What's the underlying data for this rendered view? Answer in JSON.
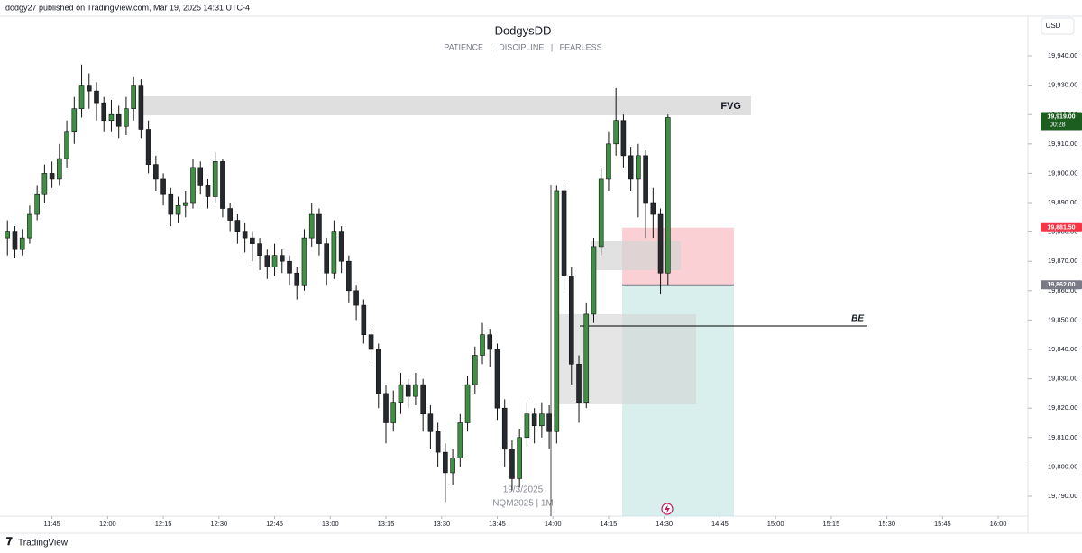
{
  "header": {
    "publisher": "dodgy27 published on TradingView.com, Mar 19, 2025 14:31 UTC-4",
    "title": "DodgysDD",
    "subtitle": "PATIENCE   |   DISCIPLINE   |   FEARLESS",
    "currency": "USD",
    "watermark_date": "19/3/2025",
    "watermark_symbol": "NQM2025 | 1M",
    "brand": "TradingView"
  },
  "chart_data": {
    "type": "candlestick",
    "x": [
      "11:33",
      "11:35",
      "11:37",
      "11:39",
      "11:41",
      "11:43",
      "11:45",
      "11:47",
      "11:49",
      "11:51",
      "11:53",
      "11:55",
      "11:57",
      "11:59",
      "12:01",
      "12:03",
      "12:05",
      "12:07",
      "12:09",
      "12:11",
      "12:13",
      "12:15",
      "12:17",
      "12:19",
      "12:21",
      "12:23",
      "12:25",
      "12:27",
      "12:29",
      "12:31",
      "12:33",
      "12:35",
      "12:37",
      "12:39",
      "12:41",
      "12:43",
      "12:45",
      "12:47",
      "12:49",
      "12:51",
      "12:53",
      "12:55",
      "12:57",
      "12:59",
      "13:01",
      "13:03",
      "13:05",
      "13:07",
      "13:09",
      "13:11",
      "13:13",
      "13:15",
      "13:17",
      "13:19",
      "13:21",
      "13:23",
      "13:25",
      "13:27",
      "13:29",
      "13:31",
      "13:33",
      "13:35",
      "13:37",
      "13:39",
      "13:41",
      "13:43",
      "13:45",
      "13:47",
      "13:49",
      "13:51",
      "13:53",
      "13:55",
      "13:57",
      "13:59",
      "14:01",
      "14:03",
      "14:05",
      "14:07",
      "14:09",
      "14:11",
      "14:13",
      "14:15",
      "14:17",
      "14:19",
      "14:21",
      "14:23",
      "14:25",
      "14:27",
      "14:29",
      "14:31"
    ],
    "candles": [
      [
        19878,
        19884,
        19872,
        19880
      ],
      [
        19880,
        19882,
        19871,
        19874
      ],
      [
        19874,
        19881,
        19872,
        19878
      ],
      [
        19878,
        19889,
        19876,
        19886
      ],
      [
        19886,
        19896,
        19884,
        19893
      ],
      [
        19893,
        19903,
        19890,
        19900
      ],
      [
        19900,
        19904,
        19895,
        19898
      ],
      [
        19898,
        19910,
        19896,
        19905
      ],
      [
        19905,
        19918,
        19902,
        19914
      ],
      [
        19914,
        19926,
        19910,
        19922
      ],
      [
        19922,
        19937,
        19919,
        19930
      ],
      [
        19930,
        19934,
        19922,
        19928
      ],
      [
        19928,
        19931,
        19918,
        19924
      ],
      [
        19924,
        19926,
        19914,
        19918
      ],
      [
        19918,
        19925,
        19914,
        19920
      ],
      [
        19920,
        19923,
        19912,
        19916
      ],
      [
        19916,
        19926,
        19913,
        19922
      ],
      [
        19922,
        19933,
        19918,
        19930
      ],
      [
        19930,
        19932,
        19912,
        19915
      ],
      [
        19915,
        19918,
        19900,
        19903
      ],
      [
        19903,
        19906,
        19894,
        19898
      ],
      [
        19898,
        19900,
        19889,
        19893
      ],
      [
        19893,
        19895,
        19882,
        19886
      ],
      [
        19886,
        19892,
        19883,
        19889
      ],
      [
        19889,
        19894,
        19885,
        19890
      ],
      [
        19890,
        19905,
        19888,
        19902
      ],
      [
        19902,
        19904,
        19893,
        19896
      ],
      [
        19896,
        19898,
        19888,
        19892
      ],
      [
        19892,
        19907,
        19890,
        19904
      ],
      [
        19904,
        19905,
        19885,
        19888
      ],
      [
        19888,
        19890,
        19880,
        19884
      ],
      [
        19884,
        19886,
        19876,
        19880
      ],
      [
        19880,
        19883,
        19873,
        19878
      ],
      [
        19878,
        19880,
        19870,
        19876
      ],
      [
        19876,
        19878,
        19867,
        19872
      ],
      [
        19872,
        19874,
        19864,
        19868
      ],
      [
        19868,
        19876,
        19865,
        19872
      ],
      [
        19872,
        19874,
        19866,
        19870
      ],
      [
        19870,
        19872,
        19862,
        19866
      ],
      [
        19866,
        19868,
        19857,
        19862
      ],
      [
        19862,
        19881,
        19860,
        19878
      ],
      [
        19878,
        19890,
        19875,
        19886
      ],
      [
        19886,
        19888,
        19872,
        19876
      ],
      [
        19876,
        19878,
        19862,
        19866
      ],
      [
        19866,
        19884,
        19864,
        19880
      ],
      [
        19880,
        19882,
        19866,
        19870
      ],
      [
        19870,
        19872,
        19856,
        19860
      ],
      [
        19860,
        19862,
        19850,
        19855
      ],
      [
        19855,
        19857,
        19842,
        19845
      ],
      [
        19845,
        19848,
        19836,
        19840
      ],
      [
        19840,
        19842,
        19820,
        19825
      ],
      [
        19825,
        19828,
        19808,
        19815
      ],
      [
        19815,
        19826,
        19812,
        19822
      ],
      [
        19822,
        19832,
        19818,
        19828
      ],
      [
        19828,
        19830,
        19820,
        19824
      ],
      [
        19824,
        19832,
        19821,
        19828
      ],
      [
        19828,
        19830,
        19812,
        19818
      ],
      [
        19818,
        19821,
        19806,
        19812
      ],
      [
        19812,
        19815,
        19800,
        19805
      ],
      [
        19805,
        19808,
        19788,
        19798
      ],
      [
        19798,
        19806,
        19794,
        19803
      ],
      [
        19803,
        19818,
        19800,
        19815
      ],
      [
        19815,
        19831,
        19812,
        19828
      ],
      [
        19828,
        19841,
        19825,
        19838
      ],
      [
        19838,
        19849,
        19835,
        19845
      ],
      [
        19845,
        19847,
        19834,
        19840
      ],
      [
        19840,
        19842,
        19816,
        19820
      ],
      [
        19820,
        19823,
        19800,
        19806
      ],
      [
        19806,
        19809,
        19792,
        19796
      ],
      [
        19796,
        19813,
        19793,
        19810
      ],
      [
        19810,
        19822,
        19807,
        19818
      ],
      [
        19818,
        19820,
        19808,
        19814
      ],
      [
        19814,
        19822,
        19810,
        19818
      ],
      [
        19818,
        19821,
        19806,
        19812
      ],
      [
        19812,
        19896,
        19808,
        19894
      ],
      [
        19894,
        19897,
        19860,
        19865
      ],
      [
        19865,
        19868,
        19828,
        19835
      ],
      [
        19835,
        19838,
        19815,
        19822
      ],
      [
        19822,
        19856,
        19820,
        19852
      ],
      [
        19852,
        19878,
        19849,
        19875
      ],
      [
        19875,
        19902,
        19872,
        19898
      ],
      [
        19898,
        19914,
        19894,
        19910
      ],
      [
        19910,
        19929,
        19906,
        19918
      ],
      [
        19918,
        19920,
        19902,
        19906
      ],
      [
        19906,
        19909,
        19894,
        19898
      ],
      [
        19898,
        19910,
        19885,
        19906
      ],
      [
        19906,
        19908,
        19878,
        19890
      ],
      [
        19890,
        19895,
        19878,
        19886
      ],
      [
        19886,
        19888,
        19859,
        19866
      ],
      [
        19866,
        19920,
        19862,
        19919
      ]
    ],
    "up_color": "#3f8f44",
    "down_color": "#26292e",
    "xlim": [
      "11:31",
      "16:08"
    ],
    "xticks": [
      "11:45",
      "12:00",
      "12:15",
      "12:30",
      "12:45",
      "13:00",
      "13:15",
      "13:30",
      "13:45",
      "14:00",
      "14:15",
      "14:30",
      "14:45",
      "15:00",
      "15:15",
      "15:30",
      "15:45",
      "16:00"
    ],
    "ylim": [
      19783.25,
      19953.5
    ],
    "yticks": [
      {
        "value": 19790,
        "label": "19,790.00"
      },
      {
        "value": 19800,
        "label": "19,800.00"
      },
      {
        "value": 19810,
        "label": "19,810.00"
      },
      {
        "value": 19820,
        "label": "19,820.00"
      },
      {
        "value": 19830,
        "label": "19,830.00"
      },
      {
        "value": 19840,
        "label": "19,840.00"
      },
      {
        "value": 19850,
        "label": "19,850.00"
      },
      {
        "value": 19860,
        "label": "19,860.00"
      },
      {
        "value": 19870,
        "label": "19,870.00"
      },
      {
        "value": 19880,
        "label": "19,880.00"
      },
      {
        "value": 19890,
        "label": "19,890.00"
      },
      {
        "value": 19900,
        "label": "19,900.00"
      },
      {
        "value": 19910,
        "label": "19,910.00"
      },
      {
        "value": 19920,
        "label": "19,920.00"
      },
      {
        "value": 19930,
        "label": "19,930.00"
      },
      {
        "value": 19940,
        "label": "19,940.00"
      }
    ],
    "price_labels": [
      {
        "value": 19919,
        "label": "19,919.00",
        "sub": "00:28",
        "color": "#1b5e20"
      },
      {
        "value": 19881.5,
        "label": "19,881.50",
        "color": "#f23645"
      },
      {
        "value": 19862,
        "label": "19,862.00",
        "color": "#787b86"
      }
    ],
    "annotations": [
      "FVG",
      "BE"
    ]
  }
}
